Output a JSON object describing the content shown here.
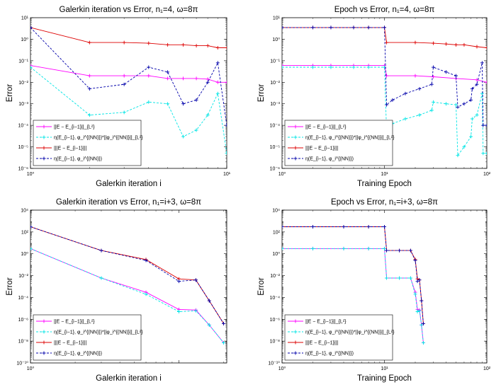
{
  "colors": {
    "magenta": "#ff00ff",
    "cyan": "#00e5e5",
    "red": "#dd0000",
    "blue": "#0000aa"
  },
  "chart_data": [
    {
      "type": "line",
      "title": "Galerkin iteration vs Error,  n₁=4,  ω=8π",
      "xlabel": "Galerkin iteration i",
      "ylabel": "Error",
      "xscale": "log",
      "yscale": "log",
      "xlim": [
        1,
        10
      ],
      "ylim": [
        1e-06,
        10
      ],
      "xticks": [
        "10⁰",
        "10¹"
      ],
      "yticks": [
        "10⁻⁶",
        "10⁻⁵",
        "10⁻⁴",
        "10⁻³",
        "10⁻²",
        "10⁻¹",
        "10⁰",
        "10¹"
      ],
      "legend_position": "bottom-left",
      "series": [
        {
          "name": "||E − E_{i−1}||_{L²}",
          "color": "magenta",
          "dash": "solid",
          "x": [
            1,
            2,
            3,
            4,
            5,
            6,
            7,
            8,
            9,
            10
          ],
          "y": [
            0.06,
            0.02,
            0.02,
            0.02,
            0.015,
            0.015,
            0.015,
            0.014,
            0.01,
            0.01
          ]
        },
        {
          "name": "η(E_{i−1}, φ_i^{(NN)})*||φ_i^{(NN)}||_{L²}",
          "color": "cyan",
          "dash": "dash",
          "x": [
            1,
            2,
            3,
            4,
            5,
            6,
            7,
            8,
            9,
            10
          ],
          "y": [
            0.05,
            0.0003,
            0.0004,
            0.0012,
            0.001,
            3e-05,
            6e-05,
            0.0003,
            0.003,
            5e-06
          ]
        },
        {
          "name": "|||E − E_{i−1}|||",
          "color": "red",
          "dash": "solid",
          "x": [
            1,
            2,
            3,
            4,
            5,
            6,
            7,
            8,
            9,
            10
          ],
          "y": [
            3.5,
            0.7,
            0.7,
            0.65,
            0.55,
            0.55,
            0.5,
            0.5,
            0.4,
            0.4
          ]
        },
        {
          "name": "η(E_{i−1}, φ_i^{(NN)})",
          "color": "blue",
          "dash": "dash",
          "x": [
            1,
            2,
            3,
            4,
            5,
            6,
            7,
            8,
            9,
            10
          ],
          "y": [
            3.5,
            0.005,
            0.008,
            0.05,
            0.03,
            0.001,
            0.0015,
            0.01,
            0.08,
            0.0001
          ]
        }
      ]
    },
    {
      "type": "line",
      "title": "Epoch vs Error,  n₁=4,  ω=8π",
      "xlabel": "Training Epoch",
      "ylabel": "Error",
      "xscale": "log",
      "yscale": "log",
      "xlim": [
        1,
        100
      ],
      "ylim": [
        1e-06,
        10
      ],
      "xticks": [
        "10⁰",
        "10¹",
        "10²"
      ],
      "yticks": [
        "10⁻⁶",
        "10⁻⁵",
        "10⁻⁴",
        "10⁻³",
        "10⁻²",
        "10⁻¹",
        "10⁰",
        "10¹"
      ],
      "legend_position": "bottom-left",
      "series": [
        {
          "name": "||E − E_{i−1}||_{L²}",
          "color": "magenta",
          "dash": "solid",
          "x": [
            1,
            2,
            3,
            5,
            7,
            10,
            10.5,
            20,
            30,
            50,
            80,
            100
          ],
          "y": [
            0.06,
            0.06,
            0.06,
            0.06,
            0.06,
            0.06,
            0.02,
            0.02,
            0.018,
            0.015,
            0.013,
            0.01
          ]
        },
        {
          "name": "η(E_{i−1}, φ_i^{(NN)})*||φ_i^{(NN)}||_{L²}",
          "color": "cyan",
          "dash": "dash",
          "x": [
            1,
            2,
            3,
            5,
            7,
            10,
            10.5,
            12,
            16,
            22,
            29,
            30,
            40,
            50,
            52,
            60,
            70,
            72,
            80,
            90,
            92,
            100
          ],
          "y": [
            0.05,
            0.05,
            0.05,
            0.05,
            0.05,
            0.05,
            5e-05,
            0.00012,
            0.0002,
            0.0003,
            0.0005,
            0.0012,
            0.001,
            0.0009,
            4e-06,
            1e-05,
            3e-05,
            0.0002,
            0.0003,
            0.003,
            5e-06,
            5e-06
          ]
        },
        {
          "name": "|||E − E_{i−1}|||",
          "color": "red",
          "dash": "solid",
          "x": [
            1,
            2,
            3,
            5,
            7,
            10,
            10.5,
            20,
            30,
            40,
            50,
            60,
            80,
            100
          ],
          "y": [
            3.5,
            3.5,
            3.5,
            3.5,
            3.5,
            3.5,
            0.7,
            0.7,
            0.65,
            0.6,
            0.55,
            0.55,
            0.45,
            0.4
          ]
        },
        {
          "name": "η(E_{i−1}, φ_i^{(NN)})",
          "color": "blue",
          "dash": "dash",
          "x": [
            1,
            2,
            3,
            5,
            7,
            10,
            10.5,
            12,
            16,
            22,
            29,
            30,
            40,
            50,
            52,
            60,
            70,
            72,
            80,
            90,
            92,
            100
          ],
          "y": [
            3.5,
            3.5,
            3.5,
            3.5,
            3.5,
            3.5,
            0.0009,
            0.0015,
            0.003,
            0.005,
            0.008,
            0.05,
            0.03,
            0.02,
            0.0007,
            0.001,
            0.0015,
            0.005,
            0.008,
            0.08,
            0.0001,
            0.0001
          ]
        }
      ]
    },
    {
      "type": "line",
      "title": "Galerkin iteration vs Error,  n₁=i+3,  ω=8π",
      "xlabel": "Galerkin iteration i",
      "ylabel": "Error",
      "xscale": "log",
      "yscale": "log",
      "xlim": [
        1,
        21
      ],
      "ylim": [
        1e-10,
        10000
      ],
      "xticks": [
        "10⁰"
      ],
      "yticks": [
        "10⁻¹⁰",
        "10⁻⁸",
        "10⁻⁶",
        "10⁻⁴",
        "10⁻²",
        "10⁰",
        "10²",
        "10⁴"
      ],
      "legend_position": "bottom-left",
      "series": [
        {
          "name": "||E − E_{i−1}||_{L²}",
          "color": "magenta",
          "dash": "solid",
          "x": [
            1,
            3,
            6,
            10,
            13,
            16,
            20
          ],
          "y": [
            3,
            0.006,
            0.0003,
            8e-06,
            7e-06,
            3e-07,
            7e-09
          ]
        },
        {
          "name": "η(E_{i−1}, φ_i^{(NN)})*||φ_i^{(NN)}||_{L²}",
          "color": "cyan",
          "dash": "dash",
          "x": [
            1,
            3,
            6,
            10,
            13,
            16,
            20
          ],
          "y": [
            3,
            0.006,
            0.0002,
            5e-06,
            6e-06,
            3e-07,
            7e-09
          ]
        },
        {
          "name": "|||E − E_{i−1}|||",
          "color": "red",
          "dash": "solid",
          "x": [
            1,
            3,
            6,
            10,
            13,
            16,
            20
          ],
          "y": [
            300,
            2,
            0.3,
            0.005,
            0.004,
            5e-05,
            4e-07
          ]
        },
        {
          "name": "η(E_{i−1}, φ_i^{(NN)})",
          "color": "blue",
          "dash": "dash",
          "x": [
            1,
            3,
            6,
            10,
            13,
            16,
            20
          ],
          "y": [
            300,
            2,
            0.25,
            0.003,
            0.004,
            5e-05,
            4e-07
          ]
        }
      ]
    },
    {
      "type": "line",
      "title": "Epoch vs Error,  n₁=i+3,  ω=8π",
      "xlabel": "Training Epoch",
      "ylabel": "Error",
      "xscale": "log",
      "yscale": "log",
      "xlim": [
        1,
        100
      ],
      "ylim": [
        1e-10,
        10000
      ],
      "xticks": [
        "10⁰",
        "10¹",
        "10²"
      ],
      "yticks": [
        "10⁻¹⁰",
        "10⁻⁸",
        "10⁻⁶",
        "10⁻⁴",
        "10⁻²",
        "10⁰",
        "10²",
        "10⁴"
      ],
      "legend_position": "bottom-left",
      "series": [
        {
          "name": "||E − E_{i−1}||_{L²}",
          "color": "magenta",
          "dash": "solid",
          "x": [
            1,
            2,
            4,
            7,
            10,
            10.5,
            14,
            18,
            20,
            21,
            22,
            23,
            24
          ],
          "y": [
            3,
            3,
            3,
            3,
            3,
            0.006,
            0.006,
            0.006,
            0.0003,
            8e-06,
            7e-06,
            3e-07,
            7e-09
          ]
        },
        {
          "name": "η(E_{i−1}, φ_i^{(NN)})*||φ_i^{(NN)}||_{L²}",
          "color": "cyan",
          "dash": "dash",
          "x": [
            1,
            2,
            4,
            7,
            10,
            10.5,
            14,
            18,
            20,
            21,
            22,
            23,
            24
          ],
          "y": [
            3,
            3,
            3,
            3,
            3,
            0.006,
            0.006,
            0.006,
            0.0002,
            5e-06,
            6e-06,
            3e-07,
            7e-09
          ]
        },
        {
          "name": "|||E − E_{i−1}|||",
          "color": "red",
          "dash": "solid",
          "x": [
            1,
            2,
            4,
            7,
            10,
            10.5,
            14,
            18,
            20,
            21,
            22,
            23,
            24
          ],
          "y": [
            300,
            300,
            300,
            300,
            300,
            2,
            2,
            2,
            0.3,
            0.005,
            0.004,
            5e-05,
            4e-07
          ]
        },
        {
          "name": "η(E_{i−1}, φ_i^{(NN)})",
          "color": "blue",
          "dash": "dash",
          "x": [
            1,
            2,
            4,
            7,
            10,
            10.5,
            14,
            18,
            20,
            21,
            22,
            23,
            24
          ],
          "y": [
            300,
            300,
            300,
            300,
            300,
            2,
            2,
            2,
            0.25,
            0.003,
            0.004,
            5e-05,
            4e-07
          ]
        }
      ]
    }
  ]
}
